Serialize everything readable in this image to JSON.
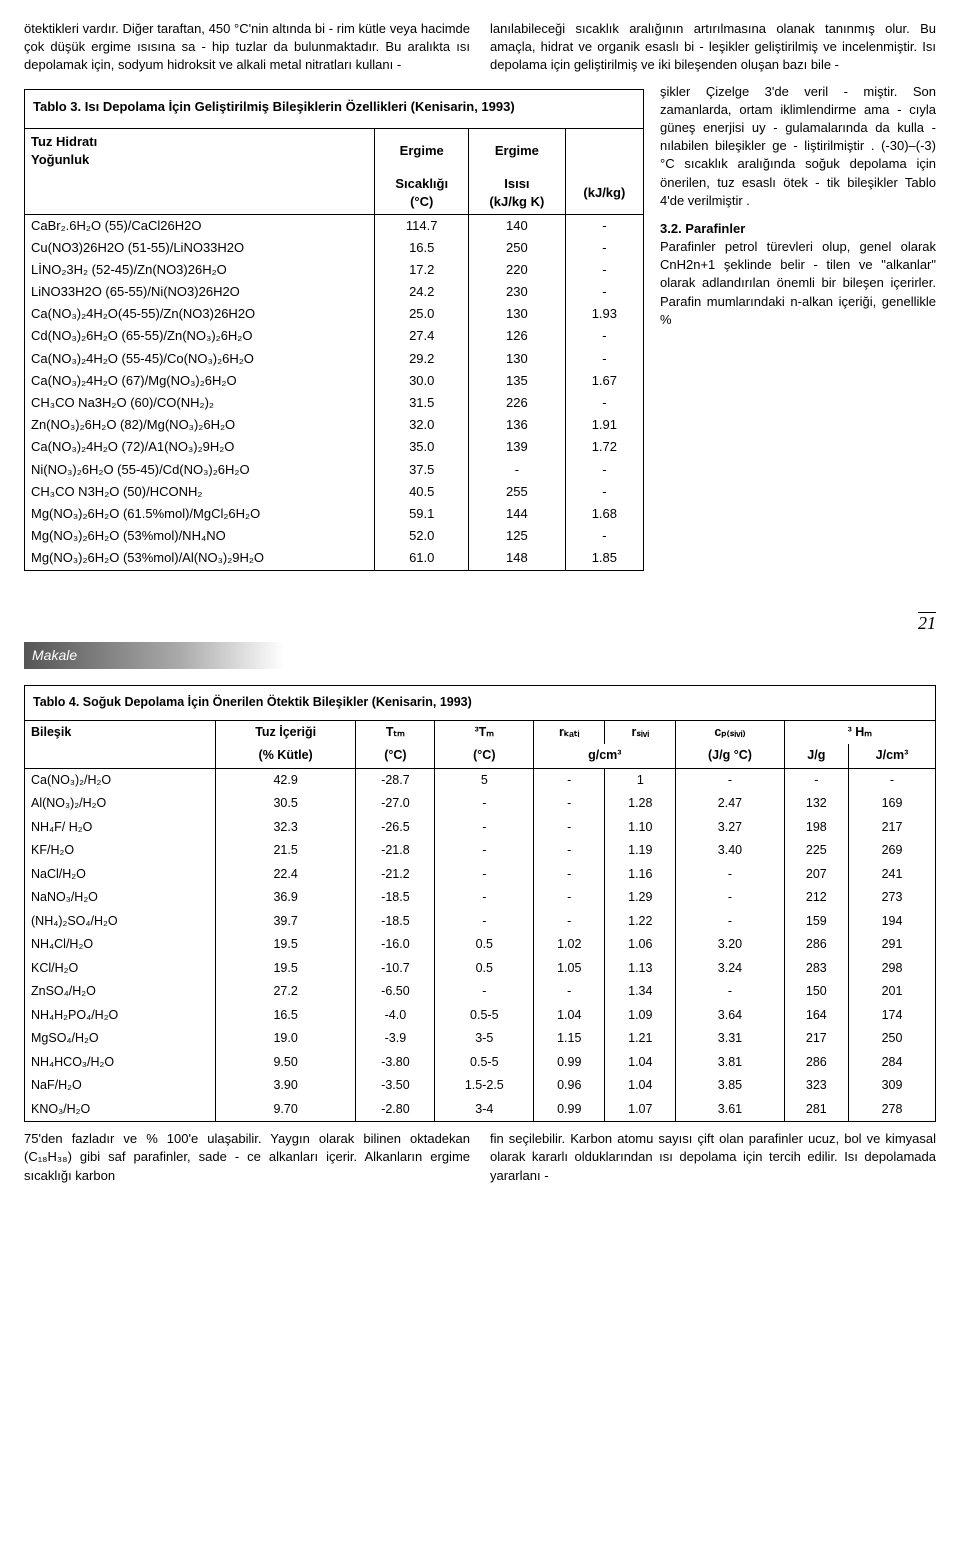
{
  "intro": {
    "left": "ötektikleri vardır. Diğer taraftan, 450 °C'nin altında bi - rim kütle veya hacimde çok düşük ergime ısısına sa - hip tuzlar da bulunmaktadır. Bu aralıkta ısı depolamak için, sodyum hidroksit ve alkali metal nitratları kullanı -",
    "right": "lanılabileceği sıcaklık aralığının artırılmasına olanak tanınmış olur. Bu amaçla, hidrat ve organik esaslı bi - leşikler geliştirilmiş ve incelenmiştir. Isı depolama için geliştirilmiş ve iki bileşenden oluşan bazı bile -"
  },
  "rightcol": {
    "p1": "şikler Çizelge 3'de veril - miştir. Son zamanlarda, ortam iklimlendirme ama - cıyla güneş enerjisi uy - gulamalarında da kulla - nılabilen bileşikler ge - liştirilmiştir . (-30)–(-3) °C sıcaklık aralığında soğuk depolama için önerilen, tuz esaslı ötek - tik bileşikler Tablo 4'de verilmiştir .",
    "h2": "3.2. Parafinler",
    "p2": "Parafinler petrol türevleri olup, genel olarak CnH2n+1 şeklinde belir - tilen ve \"alkanlar\" olarak adlandırılan önemli bir bileşen içerirler. Parafin mumlarındaki n-alkan içeriği, genellikle %"
  },
  "t3": {
    "caption": "Tablo 3. Isı Depolama İçin Geliştirilmiş Bileşiklerin Özellikleri (Kenisarin, 1993)",
    "h1a": "Tuz Hidratı",
    "h1b": "Yoğunluk",
    "h2a": "Ergime",
    "h2b": "Ergime",
    "u1": "Sıcaklığı",
    "u1b": "(°C)",
    "u2": "Isısı",
    "u2b": "(kJ/kg K)",
    "u3": "(kJ/kg)",
    "rows": [
      [
        "CaBr₂.6H₂O (55)/CaCl26H2O",
        "114.7",
        "140",
        "-"
      ],
      [
        "Cu(NO3)26H2O (51-55)/LiNO33H2O",
        "16.5",
        "250",
        "-"
      ],
      [
        "LİNO₂3H₂ (52-45)/Zn(NO3)26H₂O",
        "17.2",
        "220",
        "-"
      ],
      [
        "LiNO33H2O (65-55)/Ni(NO3)26H2O",
        "24.2",
        "230",
        "-"
      ],
      [
        "Ca(NO₃)₂4H₂O(45-55)/Zn(NO3)26H2O",
        "25.0",
        "130",
        "1.93"
      ],
      [
        "Cd(NO₃)₂6H₂O (65-55)/Zn(NO₃)₂6H₂O",
        "27.4",
        "126",
        "-"
      ],
      [
        "Ca(NO₃)₂4H₂O (55-45)/Co(NO₃)₂6H₂O",
        "29.2",
        "130",
        "-"
      ],
      [
        "Ca(NO₃)₂4H₂O (67)/Mg(NO₃)₂6H₂O",
        "30.0",
        "135",
        "1.67"
      ],
      [
        "CH₃CO Na3H₂O (60)/CO(NH₂)₂",
        "31.5",
        "226",
        "-"
      ],
      [
        "Zn(NO₃)₂6H₂O (82)/Mg(NO₃)₂6H₂O",
        "32.0",
        "136",
        "1.91"
      ],
      [
        "Ca(NO₃)₂4H₂O (72)/A1(NO₃)₂9H₂O",
        "35.0",
        "139",
        "1.72"
      ],
      [
        "Ni(NO₃)₂6H₂O (55-45)/Cd(NO₃)₂6H₂O",
        "37.5",
        "-",
        "-"
      ],
      [
        "CH₃CO N3H₂O (50)/HCONH₂",
        "40.5",
        "255",
        "-"
      ],
      [
        "Mg(NO₃)₂6H₂O (61.5%mol)/MgCl₂6H₂O",
        "59.1",
        "144",
        "1.68"
      ],
      [
        "Mg(NO₃)₂6H₂O (53%mol)/NH₄NO",
        "52.0",
        "125",
        "-"
      ],
      [
        "Mg(NO₃)₂6H₂O (53%mol)/Al(NO₃)₂9H₂O",
        "61.0",
        "148",
        "1.85"
      ]
    ]
  },
  "pagenum": "21",
  "makale": "Makale",
  "t4": {
    "caption": "Tablo 4. Soğuk Depolama İçin Önerilen Ötektik Bileşikler (Kenisarin, 1993)",
    "cols": [
      "Bileşik",
      "Tuz İçeriği",
      "Tₜₘ",
      "³Tₘ",
      "rₖₐₜᵢ",
      "rₛᵢᵥᵢ",
      "cₚ₍ₛᵢᵥᵢ₎",
      "³ Hₘ",
      ""
    ],
    "cols2": [
      "",
      "(% Kütle)",
      "(°C)",
      "(°C)",
      "g/cm³",
      "",
      "(J/g °C)",
      "J/g",
      "J/cm³"
    ],
    "rows": [
      [
        "Ca(NO₃)₂/H₂O",
        "42.9",
        "-28.7",
        "5",
        "-",
        "1",
        "-",
        "-",
        "-"
      ],
      [
        "Al(NO₃)₂/H₂O",
        "30.5",
        "-27.0",
        "-",
        "-",
        "1.28",
        "2.47",
        "132",
        "169"
      ],
      [
        "NH₄F/ H₂O",
        "32.3",
        "-26.5",
        "-",
        "-",
        "1.10",
        "3.27",
        "198",
        "217"
      ],
      [
        "KF/H₂O",
        "21.5",
        "-21.8",
        "-",
        "-",
        "1.19",
        "3.40",
        "225",
        "269"
      ],
      [
        "NaCl/H₂O",
        "22.4",
        "-21.2",
        "-",
        "-",
        "1.16",
        "-",
        "207",
        "241"
      ],
      [
        "NaNO₃/H₂O",
        "36.9",
        "-18.5",
        "-",
        "-",
        "1.29",
        "-",
        "212",
        "273"
      ],
      [
        "(NH₄)₂SO₄/H₂O",
        "39.7",
        "-18.5",
        "-",
        "-",
        "1.22",
        "-",
        "159",
        "194"
      ],
      [
        "NH₄Cl/H₂O",
        "19.5",
        "-16.0",
        "0.5",
        "1.02",
        "1.06",
        "3.20",
        "286",
        "291"
      ],
      [
        "KCl/H₂O",
        "19.5",
        "-10.7",
        "0.5",
        "1.05",
        "1.13",
        "3.24",
        "283",
        "298"
      ],
      [
        "ZnSO₄/H₂O",
        "27.2",
        "-6.50",
        "-",
        "-",
        "1.34",
        "-",
        "150",
        "201"
      ],
      [
        "NH₄H₂PO₄/H₂O",
        "16.5",
        "-4.0",
        "0.5-5",
        "1.04",
        "1.09",
        "3.64",
        "164",
        "174"
      ],
      [
        "MgSO₄/H₂O",
        "19.0",
        "-3.9",
        "3-5",
        "1.15",
        "1.21",
        "3.31",
        "217",
        "250"
      ],
      [
        "NH₄HCO₃/H₂O",
        "9.50",
        "-3.80",
        "0.5-5",
        "0.99",
        "1.04",
        "3.81",
        "286",
        "284"
      ],
      [
        "NaF/H₂O",
        "3.90",
        "-3.50",
        "1.5-2.5",
        "0.96",
        "1.04",
        "3.85",
        "323",
        "309"
      ],
      [
        "KNO₃/H₂O",
        "9.70",
        "-2.80",
        "3-4",
        "0.99",
        "1.07",
        "3.61",
        "281",
        "278"
      ]
    ]
  },
  "bottom": {
    "left": "75'den fazladır ve % 100'e ulaşabilir. Yaygın olarak bilinen oktadekan (C₁₈H₃₈) gibi saf parafinler, sade - ce alkanları içerir. Alkanların ergime sıcaklığı karbon",
    "right": "fin seçilebilir. Karbon atomu sayısı çift olan parafinler ucuz, bol ve kimyasal olarak kararlı olduklarından ısı depolama için tercih edilir. Isı depolamada yararlanı -"
  }
}
